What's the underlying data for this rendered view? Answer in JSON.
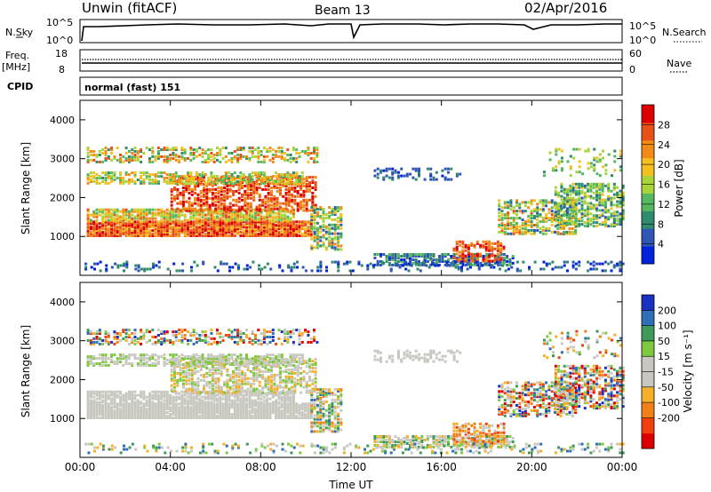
{
  "header": {
    "radar": "Unwin (fitACF)",
    "beam": "Beam 13",
    "date": "02/Apr/2016"
  },
  "top_panels": {
    "nsky_label": "N.Sky",
    "nsky_ticks": [
      "10^5",
      "10^0"
    ],
    "nsearch_label": "N.Search",
    "nsearch_ticks": [
      "10^5",
      "10^0"
    ],
    "freq_label": "Freq.",
    "freq_unit": "[MHz]",
    "freq_ticks": [
      "18",
      "8"
    ],
    "nave_label": "Nave",
    "nave_ticks": [
      "60",
      "0"
    ],
    "cpid_label": "CPID",
    "cpid_value": "normal (fast) 151"
  },
  "colors": {
    "power": [
      "#0022dd",
      "#2f55b5",
      "#2f8a6e",
      "#55b860",
      "#a8d43a",
      "#f4c020",
      "#f28a18",
      "#e8501a",
      "#dd0000"
    ],
    "velocity": [
      "#dd0000",
      "#ee4010",
      "#f08018",
      "#f4b028",
      "#c8c8c0",
      "#c8c8c0",
      "#80c840",
      "#3f9a5a",
      "#2f6fb5",
      "#1a30c0"
    ]
  },
  "chart_data": [
    {
      "type": "heatmap",
      "name": "power",
      "xlabel": "Time UT",
      "ylabel": "Slant Range [km]",
      "x_ticks": [
        "00:00",
        "04:00",
        "08:00",
        "12:00",
        "16:00",
        "20:00",
        "00:00"
      ],
      "y_ticks": [
        "1000",
        "2000",
        "3000",
        "4000"
      ],
      "ylim": [
        0,
        4500
      ],
      "colorbar_label": "Power [dB]",
      "colorbar_ticks": [
        "4",
        "8",
        "12",
        "16",
        "20",
        "24",
        "28"
      ],
      "colorbar_range": [
        0,
        32
      ]
    },
    {
      "type": "heatmap",
      "name": "velocity",
      "xlabel": "Time UT",
      "ylabel": "Slant Range [km]",
      "x_ticks": [
        "00:00",
        "04:00",
        "08:00",
        "12:00",
        "16:00",
        "20:00",
        "00:00"
      ],
      "y_ticks": [
        "1000",
        "2000",
        "3000",
        "4000"
      ],
      "ylim": [
        0,
        4500
      ],
      "colorbar_label": "Velocity [m s⁻¹]",
      "colorbar_ticks": [
        "200",
        "100",
        "50",
        "15",
        "-15",
        "-50",
        "-100",
        "-200"
      ]
    }
  ],
  "footer": {
    "xlabel": "Time UT"
  }
}
